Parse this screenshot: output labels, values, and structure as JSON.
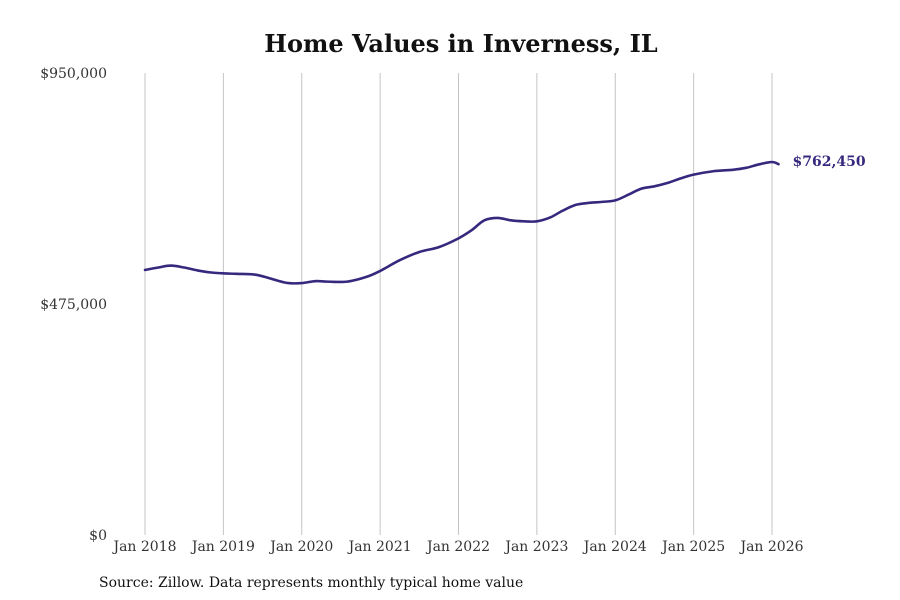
{
  "chart_data": {
    "type": "line",
    "title": "Home Values in Inverness, IL",
    "xlabel": "",
    "ylabel": "",
    "ylim": [
      0,
      950000
    ],
    "yticks": [
      0,
      475000,
      950000
    ],
    "ytick_labels": [
      "$0",
      "$475,000",
      "$950,000"
    ],
    "xlim": [
      2018.0,
      2026.083
    ],
    "xticks": [
      2018,
      2019,
      2020,
      2021,
      2022,
      2023,
      2024,
      2025,
      2026
    ],
    "xtick_labels": [
      "Jan 2018",
      "Jan 2019",
      "Jan 2020",
      "Jan 2021",
      "Jan 2022",
      "Jan 2023",
      "Jan 2024",
      "Jan 2025",
      "Jan 2026"
    ],
    "grid": "vertical",
    "series": [
      {
        "name": "Typical home value",
        "color": "#35297e",
        "end_label": "$762,450",
        "x": [
          2018.0,
          2018.17,
          2018.33,
          2018.5,
          2018.67,
          2018.83,
          2019.0,
          2019.17,
          2019.42,
          2019.67,
          2019.83,
          2020.0,
          2020.17,
          2020.33,
          2020.58,
          2020.83,
          2021.0,
          2021.25,
          2021.5,
          2021.75,
          2022.0,
          2022.17,
          2022.33,
          2022.5,
          2022.67,
          2022.83,
          2023.0,
          2023.17,
          2023.33,
          2023.5,
          2023.67,
          2023.83,
          2024.0,
          2024.17,
          2024.33,
          2024.5,
          2024.67,
          2024.83,
          2025.0,
          2025.25,
          2025.5,
          2025.67,
          2025.83,
          2026.0,
          2026.083
        ],
        "values": [
          545000,
          550000,
          554000,
          550000,
          544000,
          540000,
          538000,
          537000,
          535000,
          524000,
          518000,
          518000,
          522000,
          521000,
          521000,
          531000,
          543000,
          565000,
          582000,
          592000,
          610000,
          627000,
          647000,
          652000,
          647000,
          645000,
          645000,
          653000,
          667000,
          679000,
          683000,
          685000,
          688000,
          700000,
          712000,
          717000,
          724000,
          733000,
          741000,
          748000,
          751000,
          755000,
          762000,
          767000,
          762450
        ]
      }
    ]
  },
  "source_note": "Source: Zillow. Data represents monthly typical home value"
}
